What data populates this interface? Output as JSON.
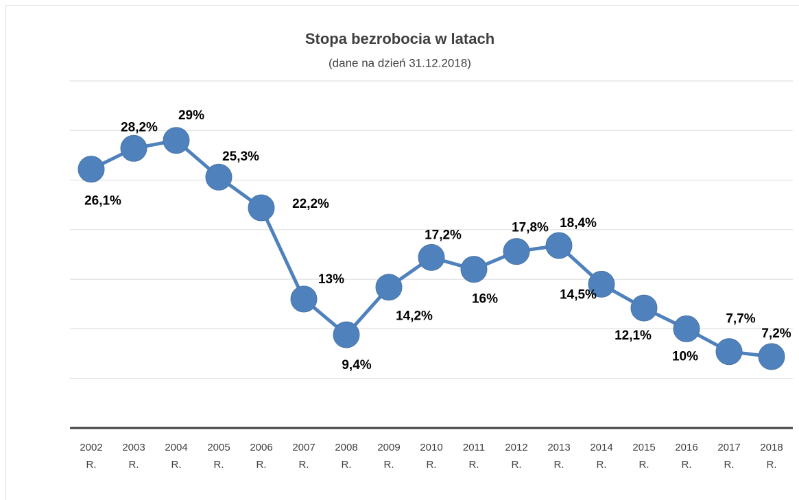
{
  "chart_data": {
    "type": "line",
    "title": "Stopa bezrobocia w latach",
    "subtitle": "(dane na dzień 31.12.2018)",
    "categories": [
      "2002 R.",
      "2003 R.",
      "2004 R.",
      "2005 R.",
      "2006 R.",
      "2007 R.",
      "2008 R.",
      "2009 R.",
      "2010 R.",
      "2011 R.",
      "2012 R.",
      "2013 R.",
      "2014 R.",
      "2015 R.",
      "2016 R.",
      "2017 R.",
      "2018 R."
    ],
    "series": [
      {
        "color": "#4f81bd",
        "values": [
          26.1,
          28.2,
          29,
          25.3,
          22.2,
          13,
          9.4,
          14.2,
          17.2,
          16,
          17.8,
          18.4,
          14.5,
          12.1,
          10,
          7.7,
          7.2
        ],
        "value_labels": [
          "26,1%",
          "28,2%",
          "29%",
          "25,3%",
          "22,2%",
          "13%",
          "9,4%",
          "14,2%",
          "17,2%",
          "16%",
          "17,8%",
          "18,4%",
          "14,5%",
          "12,1%",
          "10%",
          "7,7%",
          "7,2%"
        ]
      }
    ],
    "ylim": [
      0,
      35
    ],
    "yticks": [
      0,
      5,
      10,
      15,
      20,
      25,
      30,
      35
    ],
    "grid": true
  }
}
